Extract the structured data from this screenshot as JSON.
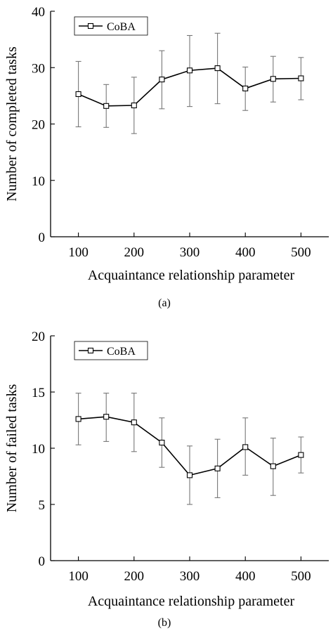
{
  "chart_data": [
    {
      "type": "line",
      "caption": "(a)",
      "xlabel": "Acquaintance relationship parameter",
      "ylabel": "Number of completed tasks",
      "xlim": [
        50,
        550
      ],
      "ylim": [
        0,
        40
      ],
      "xticks": [
        100,
        200,
        300,
        400,
        500
      ],
      "yticks": [
        0,
        10,
        20,
        30,
        40
      ],
      "legend_position": "top-left",
      "x": [
        100,
        150,
        200,
        250,
        300,
        350,
        400,
        450,
        500
      ],
      "series": [
        {
          "name": "CoBA",
          "values": [
            25.3,
            23.2,
            23.3,
            27.9,
            29.5,
            29.9,
            26.3,
            28.0,
            28.1
          ],
          "err_low": [
            19.5,
            19.4,
            18.3,
            22.7,
            23.1,
            23.6,
            22.4,
            23.9,
            24.3
          ],
          "err_high": [
            31.1,
            27.0,
            28.3,
            33.0,
            35.7,
            36.1,
            30.1,
            32.0,
            31.8
          ]
        }
      ]
    },
    {
      "type": "line",
      "caption": "(b)",
      "xlabel": "Acquaintance relationship parameter",
      "ylabel": "Number of failed tasks",
      "xlim": [
        50,
        550
      ],
      "ylim": [
        0,
        20
      ],
      "xticks": [
        100,
        200,
        300,
        400,
        500
      ],
      "yticks": [
        0,
        5,
        10,
        15,
        20
      ],
      "legend_position": "top-left",
      "x": [
        100,
        150,
        200,
        250,
        300,
        350,
        400,
        450,
        500
      ],
      "series": [
        {
          "name": "CoBA",
          "values": [
            12.6,
            12.8,
            12.3,
            10.5,
            7.6,
            8.2,
            10.1,
            8.4,
            9.4
          ],
          "err_low": [
            10.3,
            10.6,
            9.7,
            8.3,
            5.0,
            5.6,
            7.6,
            5.8,
            7.8
          ],
          "err_high": [
            14.9,
            14.9,
            14.9,
            12.7,
            10.2,
            10.8,
            12.7,
            10.9,
            11.0
          ]
        }
      ]
    }
  ]
}
